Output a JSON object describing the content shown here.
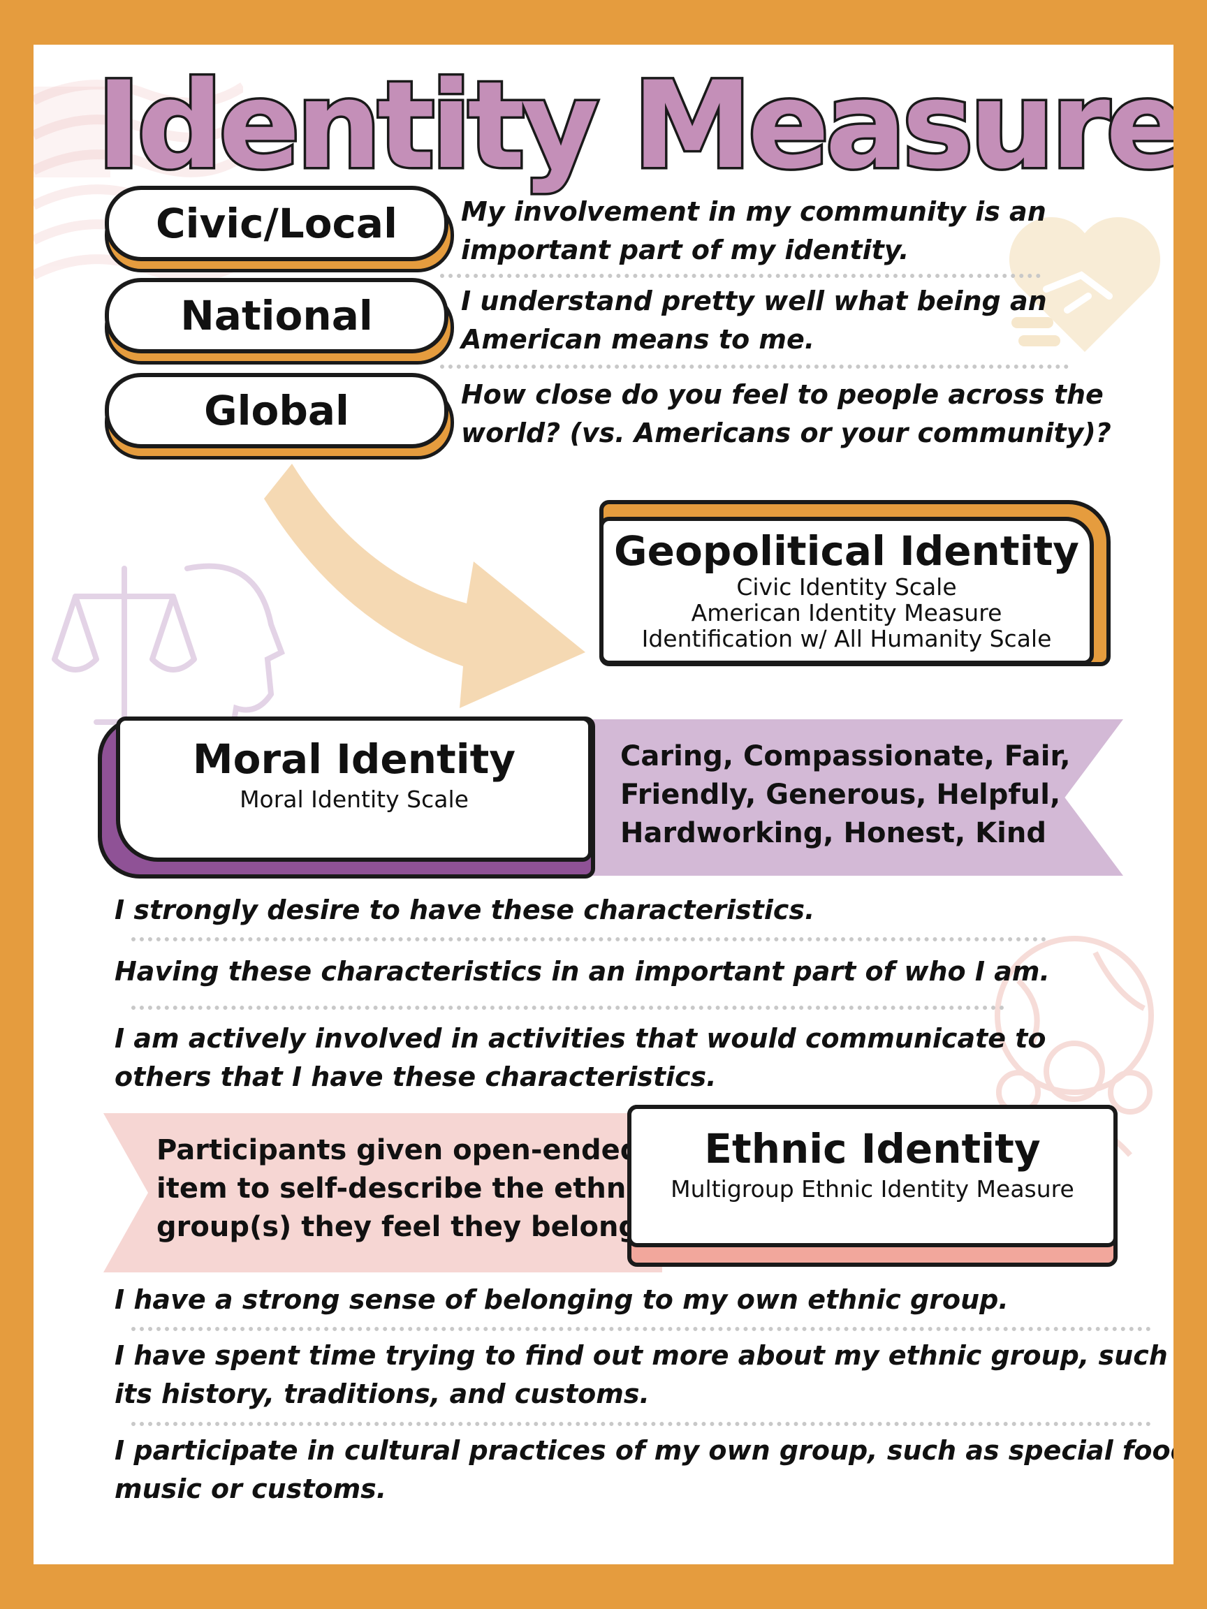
{
  "title": "Identity Measures",
  "geo_levels": [
    {
      "label": "Civic/Local",
      "question": [
        "My involvement in my community is an",
        "important part of my identity."
      ]
    },
    {
      "label": "National",
      "question": [
        "I understand pretty well what being an",
        "American means to me."
      ]
    },
    {
      "label": "Global",
      "question": [
        "How close do you feel to people across the",
        "world? (vs. Americans or your community)?"
      ]
    }
  ],
  "geopolitical": {
    "title": "Geopolitical Identity",
    "scales": [
      "Civic Identity Scale",
      "American Identity Measure",
      "Identification w/ All Humanity Scale"
    ]
  },
  "moral": {
    "title": "Moral Identity",
    "scale": "Moral Identity Scale",
    "traits": [
      "Caring, Compassionate, Fair,",
      "Friendly, Generous, Helpful,",
      "Hardworking, Honest, Kind"
    ],
    "items": [
      [
        "I strongly desire to have these characteristics."
      ],
      [
        "Having these characteristics in an important part of who I am."
      ],
      [
        "I am actively involved in activities that would communicate to",
        "others that I have these characteristics."
      ]
    ]
  },
  "ethnic": {
    "title": "Ethnic Identity",
    "scale": "Multigroup Ethnic Identity Measure",
    "note": [
      "Participants given open-ended",
      "item to self-describe the ethnic",
      "group(s) they feel they belong to."
    ],
    "items": [
      [
        "I have a strong sense of belonging to my own ethnic group."
      ],
      [
        "I have spent time trying to find out more about my ethnic group, such as",
        "its history, traditions, and customs."
      ],
      [
        "I participate in cultural practices of my own group, such as special food,",
        "music or customs."
      ]
    ]
  },
  "colors": {
    "frame": "#E59C3E",
    "title_fill": "#C48FB8",
    "moral_accent": "#8F5296",
    "moral_ribbon": "#D3B9D6",
    "ethnic_accent": "#F2A79C",
    "ethnic_ribbon": "#F6D6D3"
  },
  "icons": [
    "flag-icon",
    "handshake-heart-icon",
    "scales-head-icon",
    "globe-people-icon",
    "curved-arrow-icon"
  ]
}
